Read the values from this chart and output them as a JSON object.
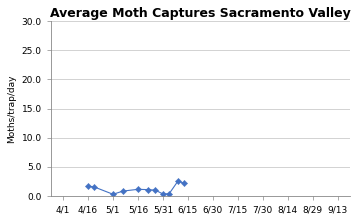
{
  "title": "Average Moth Captures Sacramento Valley",
  "ylabel": "Moths/trap/day",
  "xlabels": [
    "4/1",
    "4/16",
    "5/1",
    "5/16",
    "5/31",
    "6/15",
    "6/30",
    "7/15",
    "7/30",
    "8/14",
    "8/29",
    "9/13"
  ],
  "x_positions": [
    0,
    1,
    2,
    3,
    4,
    5,
    6,
    7,
    8,
    9,
    10,
    11
  ],
  "series_x": [
    1,
    1.25,
    2,
    2.4,
    3,
    3.4,
    3.7,
    4,
    4.25,
    4.6,
    4.85
  ],
  "series_y": [
    1.7,
    1.55,
    0.3,
    0.85,
    1.15,
    1.1,
    1.0,
    0.35,
    0.4,
    2.55,
    2.2
  ],
  "ylim": [
    0,
    30
  ],
  "yticks": [
    0.0,
    5.0,
    10.0,
    15.0,
    20.0,
    25.0,
    30.0
  ],
  "line_color": "#4472C4",
  "marker_color": "#4472C4",
  "bg_color": "#ffffff",
  "title_fontsize": 9,
  "axis_fontsize": 6.5,
  "label_fontsize": 6.5
}
